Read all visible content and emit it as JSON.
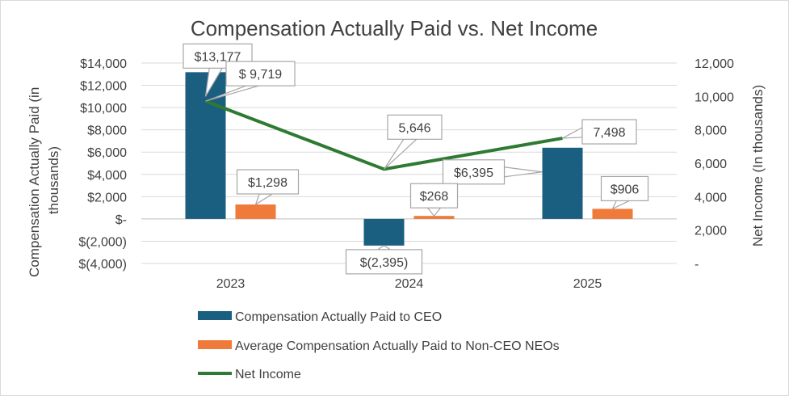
{
  "chart_data": {
    "type": "bar",
    "title": "Compensation Actually Paid vs. Net Income",
    "categories": [
      "2023",
      "2024",
      "2025"
    ],
    "ylabel": "Compensation Actually Paid (in thousands)",
    "ylabel_lines": [
      "Compensation Actually Paid (in",
      "thousands)"
    ],
    "y2label": "Net Income (In thousands)",
    "ylim": [
      -4000,
      14000
    ],
    "y_ticks": [
      {
        "value": 14000,
        "label": "$14,000"
      },
      {
        "value": 12000,
        "label": "$12,000"
      },
      {
        "value": 10000,
        "label": "$10,000"
      },
      {
        "value": 8000,
        "label": "$8,000"
      },
      {
        "value": 6000,
        "label": "$6,000"
      },
      {
        "value": 4000,
        "label": "$4,000"
      },
      {
        "value": 2000,
        "label": "$2,000"
      },
      {
        "value": 0,
        "label": "$-"
      },
      {
        "value": -2000,
        "label": "$(2,000)"
      },
      {
        "value": -4000,
        "label": "$(4,000)"
      }
    ],
    "y2lim": [
      0,
      12000
    ],
    "y2_ticks": [
      {
        "value": 12000,
        "label": "12,000"
      },
      {
        "value": 10000,
        "label": "10,000"
      },
      {
        "value": 8000,
        "label": "8,000"
      },
      {
        "value": 6000,
        "label": "6,000"
      },
      {
        "value": 4000,
        "label": "4,000"
      },
      {
        "value": 2000,
        "label": "2,000"
      },
      {
        "value": 0,
        "label": "-"
      }
    ],
    "series": [
      {
        "name": "Compensation Actually Paid to CEO",
        "kind": "bar",
        "axis": "left",
        "color": "#1a5e80",
        "values": [
          13177,
          -2395,
          6395
        ],
        "labels": [
          "$13,177",
          "$(2,395)",
          "$6,395"
        ]
      },
      {
        "name": "Average Compensation Actually Paid to Non-CEO NEOs",
        "kind": "bar",
        "axis": "left",
        "color": "#ef7a3a",
        "values": [
          1298,
          268,
          906
        ],
        "labels": [
          "$1,298",
          "$268",
          "$906"
        ]
      },
      {
        "name": "Net Income",
        "kind": "line",
        "axis": "right",
        "color": "#2e7a32",
        "values": [
          9719,
          5646,
          7498
        ],
        "labels": [
          "$ 9,719",
          "5,646",
          "7,498"
        ]
      }
    ],
    "grid": true,
    "legend_position": "bottom"
  }
}
